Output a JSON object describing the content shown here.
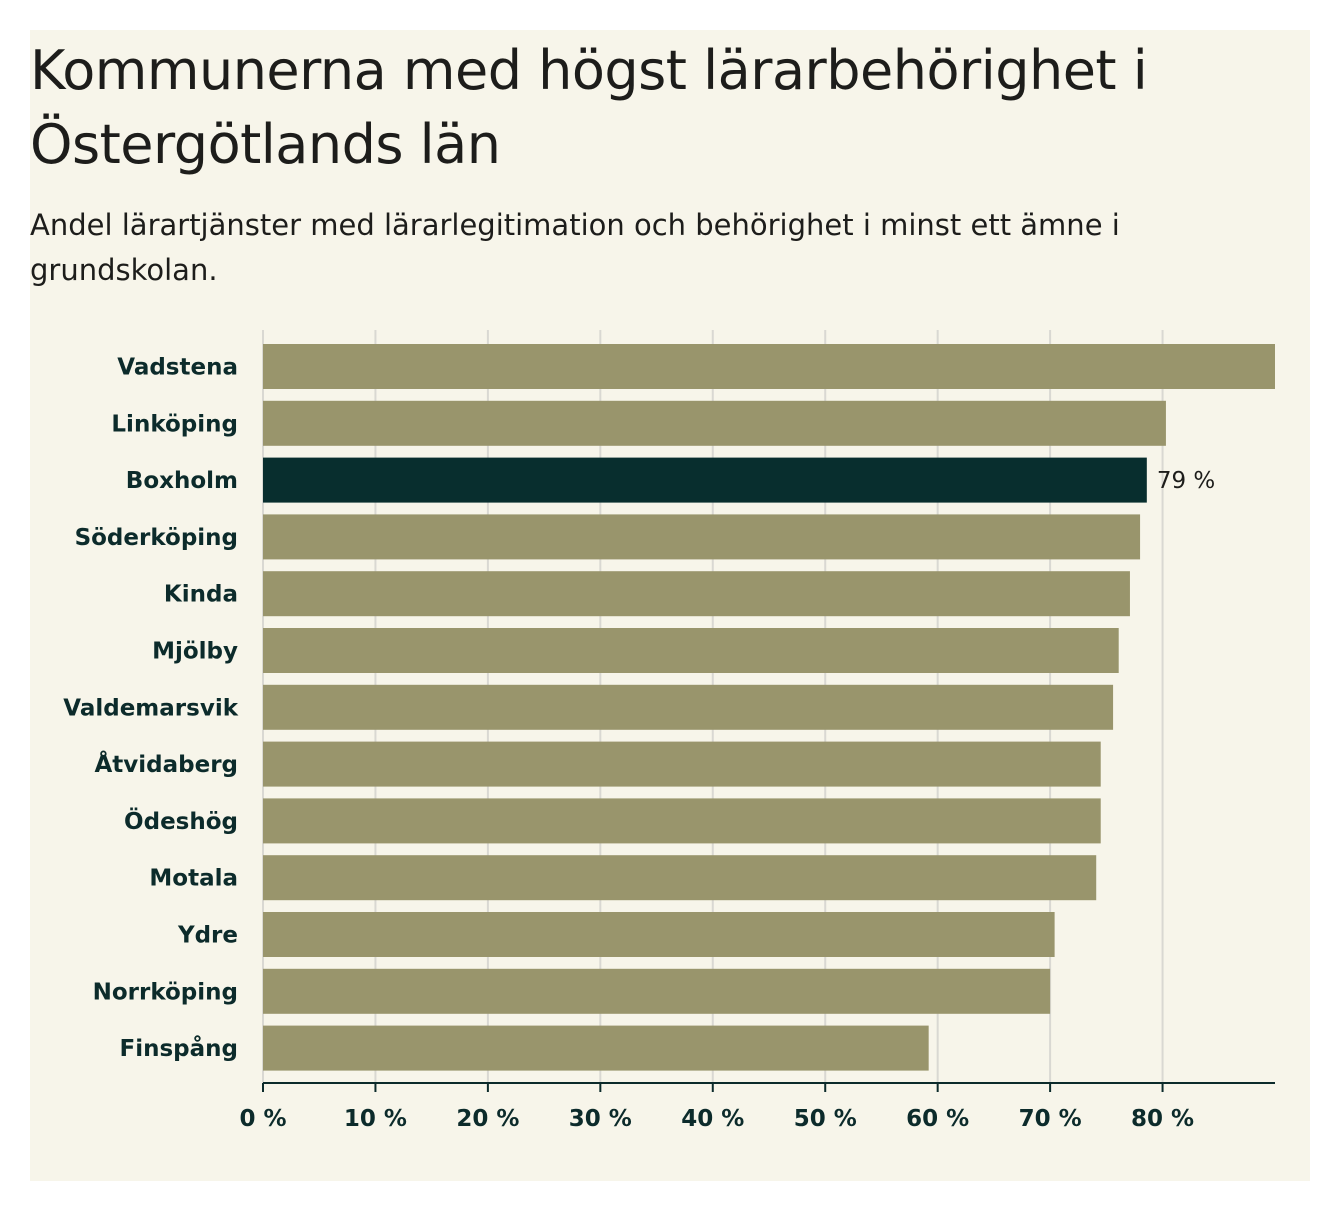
{
  "header": {
    "title": "Kommunerna med högst lärarbehörighet i Östergötlands län",
    "subtitle": "Andel lärartjänster med lärarlegitimation och behörighet i minst ett ämne i grundskolan."
  },
  "colors": {
    "background": "#f7f5ea",
    "bar": "#99956c",
    "highlight": "#082e2e",
    "grid": "#d9d8d2",
    "axis": "#0c2b2b",
    "text": "#1d1d1b"
  },
  "chart_data": {
    "type": "bar",
    "orientation": "horizontal",
    "title": "Kommunerna med högst lärarbehörighet i Östergötlands län",
    "subtitle": "Andel lärartjänster med lärarlegitimation och behörighet i minst ett ämne i grundskolan.",
    "xlabel": "",
    "ylabel": "",
    "xlim": [
      0,
      90
    ],
    "x_ticks": [
      0,
      10,
      20,
      30,
      40,
      50,
      60,
      70,
      80
    ],
    "x_tick_labels": [
      "0 %",
      "10 %",
      "20 %",
      "30 %",
      "40 %",
      "50 %",
      "60 %",
      "70 %",
      "80 %"
    ],
    "grid": true,
    "categories": [
      "Vadstena",
      "Linköping",
      "Boxholm",
      "Söderköping",
      "Kinda",
      "Mjölby",
      "Valdemarsvik",
      "Åtvidaberg",
      "Ödeshög",
      "Motala",
      "Ydre",
      "Norrköping",
      "Finspång"
    ],
    "values": [
      90,
      80.3,
      78.6,
      78,
      77.1,
      76.1,
      75.6,
      74.5,
      74.5,
      74.1,
      70.4,
      70,
      59.2
    ],
    "highlight_category": "Boxholm",
    "annotations": [
      {
        "category": "Boxholm",
        "text": "79 %"
      }
    ]
  }
}
